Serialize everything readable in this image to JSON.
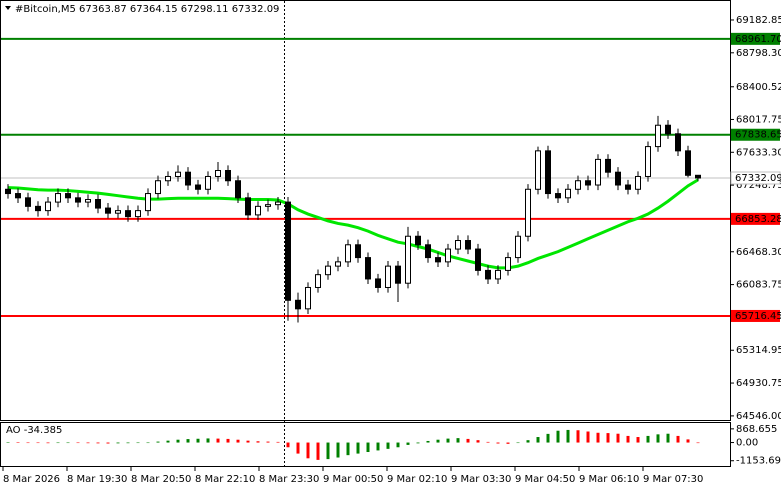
{
  "chart_data": [
    {
      "type": "candlestick",
      "title": "#Bitcoin,M5  67363.87 67364.15 67298.11 67332.09",
      "ylim": [
        64498,
        69405
      ],
      "yticks": [
        {
          "value": 69182.85,
          "label": "69182.85"
        },
        {
          "value": 68798.3,
          "label": "68798.30"
        },
        {
          "value": 68400.52,
          "label": "68400.52"
        },
        {
          "value": 68017.75,
          "label": "68017.75"
        },
        {
          "value": 67633.3,
          "label": "67633.30"
        },
        {
          "value": 67248.75,
          "label": "67248.75"
        },
        {
          "value": 66468.3,
          "label": "66468.30"
        },
        {
          "value": 66083.75,
          "label": "66083.75"
        },
        {
          "value": 65314.95,
          "label": "65314.95"
        },
        {
          "value": 64930.75,
          "label": "64930.75"
        },
        {
          "value": 64546,
          "label": "64546.00"
        }
      ],
      "levels": [
        {
          "value": 68961.7,
          "label": "68961.70",
          "color": "#008000",
          "text_color": "#ffffff"
        },
        {
          "value": 67838.65,
          "label": "67838.65",
          "color": "#008000",
          "text_color": "#ffffff"
        },
        {
          "value": 66853.28,
          "label": "66853.28",
          "color": "#ff0000",
          "text_color": "#ffffff"
        },
        {
          "value": 65716.45,
          "label": "65716.45",
          "color": "#ff0000",
          "text_color": "#ffffff"
        }
      ],
      "last_price": {
        "value": 67332.09,
        "color": "#c0c0c0",
        "text_color": "#000000"
      },
      "bull_color": "#ffffff",
      "bear_color": "#000000",
      "outline_color": "#000000",
      "candles": [
        [
          67200,
          67260,
          67090,
          67150
        ],
        [
          67150,
          67210,
          67040,
          67100
        ],
        [
          67100,
          67160,
          66940,
          67000
        ],
        [
          67000,
          67060,
          66880,
          66950
        ],
        [
          66950,
          67110,
          66890,
          67050
        ],
        [
          67050,
          67210,
          66990,
          67150
        ],
        [
          67150,
          67210,
          67040,
          67100
        ],
        [
          67100,
          67160,
          66990,
          67050
        ],
        [
          67050,
          67140,
          66990,
          67080
        ],
        [
          67080,
          67140,
          66920,
          66980
        ],
        [
          66980,
          67040,
          66860,
          66920
        ],
        [
          66920,
          67010,
          66860,
          66950
        ],
        [
          66950,
          67010,
          66820,
          66880
        ],
        [
          66880,
          67010,
          66820,
          66950
        ],
        [
          66950,
          67210,
          66890,
          67150
        ],
        [
          67150,
          67360,
          67090,
          67300
        ],
        [
          67300,
          67410,
          67240,
          67350
        ],
        [
          67350,
          67480,
          67290,
          67400
        ],
        [
          67400,
          67460,
          67190,
          67250
        ],
        [
          67250,
          67310,
          67140,
          67200
        ],
        [
          67200,
          67410,
          67140,
          67350
        ],
        [
          67350,
          67520,
          67290,
          67420
        ],
        [
          67420,
          67480,
          67240,
          67300
        ],
        [
          67300,
          67360,
          67040,
          67100
        ],
        [
          67100,
          67160,
          66840,
          66900
        ],
        [
          66900,
          67060,
          66840,
          67000
        ],
        [
          67000,
          67080,
          66940,
          67020
        ],
        [
          67020,
          67110,
          66960,
          67050
        ],
        [
          67050,
          67110,
          65660,
          65900
        ],
        [
          65900,
          65990,
          65640,
          65800
        ],
        [
          65800,
          66110,
          65740,
          66050
        ],
        [
          66050,
          66260,
          65990,
          66200
        ],
        [
          66200,
          66360,
          66140,
          66300
        ],
        [
          66300,
          66410,
          66240,
          66350
        ],
        [
          66350,
          66610,
          66290,
          66550
        ],
        [
          66550,
          66610,
          66340,
          66400
        ],
        [
          66400,
          66460,
          66090,
          66150
        ],
        [
          66150,
          66210,
          65990,
          66050
        ],
        [
          66050,
          66360,
          65990,
          66300
        ],
        [
          66300,
          66360,
          65880,
          66100
        ],
        [
          66100,
          66760,
          66040,
          66650
        ],
        [
          66650,
          66710,
          66490,
          66550
        ],
        [
          66550,
          66610,
          66340,
          66400
        ],
        [
          66400,
          66460,
          66290,
          66350
        ],
        [
          66350,
          66560,
          66290,
          66500
        ],
        [
          66500,
          66660,
          66440,
          66600
        ],
        [
          66600,
          66660,
          66440,
          66500
        ],
        [
          66500,
          66560,
          66190,
          66250
        ],
        [
          66250,
          66310,
          66090,
          66150
        ],
        [
          66150,
          66310,
          66090,
          66250
        ],
        [
          66250,
          66460,
          66190,
          66400
        ],
        [
          66400,
          66710,
          66340,
          66650
        ],
        [
          66650,
          67260,
          66590,
          67200
        ],
        [
          67200,
          67700,
          67140,
          67650
        ],
        [
          67650,
          67710,
          67090,
          67150
        ],
        [
          67150,
          67210,
          67040,
          67100
        ],
        [
          67100,
          67260,
          67040,
          67200
        ],
        [
          67200,
          67360,
          67140,
          67300
        ],
        [
          67300,
          67360,
          67190,
          67250
        ],
        [
          67250,
          67610,
          67190,
          67550
        ],
        [
          67550,
          67610,
          67340,
          67400
        ],
        [
          67400,
          67460,
          67190,
          67250
        ],
        [
          67250,
          67310,
          67140,
          67200
        ],
        [
          67200,
          67410,
          67140,
          67350
        ],
        [
          67350,
          67760,
          67290,
          67700
        ],
        [
          67700,
          68060,
          67640,
          67950
        ],
        [
          67950,
          68010,
          67790,
          67850
        ],
        [
          67850,
          67910,
          67590,
          67650
        ],
        [
          67650,
          67710,
          67340,
          67363.87
        ],
        [
          67363.87,
          67364.15,
          67298.11,
          67332.09
        ]
      ],
      "line_color": "#00e600",
      "line_values": [
        67220,
        67215,
        67205,
        67195,
        67190,
        67190,
        67185,
        67175,
        67165,
        67155,
        67140,
        67125,
        67110,
        67095,
        67085,
        67085,
        67090,
        67095,
        67095,
        67095,
        67095,
        67095,
        67090,
        67085,
        67080,
        67080,
        67080,
        67075,
        67030,
        66960,
        66910,
        66870,
        66830,
        66800,
        66780,
        66750,
        66710,
        66660,
        66620,
        66580,
        66560,
        66530,
        66500,
        66460,
        66420,
        66390,
        66360,
        66330,
        66300,
        66280,
        66280,
        66300,
        66340,
        66390,
        66430,
        66470,
        66520,
        66570,
        66620,
        66670,
        66720,
        66770,
        66820,
        66860,
        66910,
        66980,
        67060,
        67150,
        67240,
        67310
      ],
      "time_labels": [
        "8 Mar 2026",
        "8 Mar 19:30",
        "8 Mar 20:50",
        "8 Mar 22:10",
        "8 Mar 23:30",
        "9 Mar 00:50",
        "9 Mar 02:10",
        "9 Mar 03:30",
        "9 Mar 04:50",
        "9 Mar 06:10",
        "9 Mar 07:30"
      ]
    },
    {
      "type": "bar",
      "title": "AO -34.385",
      "ylim": [
        -1488,
        1240
      ],
      "yticks": [
        868.655,
        {
          "value": 0,
          "label": "0.00"
        },
        -1153.69
      ],
      "up_color": "#008000",
      "down_color": "#ff0000",
      "values": [
        20,
        10,
        -10,
        -30,
        -40,
        -30,
        -20,
        -30,
        -40,
        -50,
        -60,
        -50,
        -40,
        -30,
        0,
        60,
        120,
        180,
        220,
        240,
        260,
        250,
        230,
        180,
        120,
        80,
        60,
        40,
        -300,
        -700,
        -1000,
        -1100,
        -1050,
        -950,
        -800,
        -700,
        -600,
        -500,
        -400,
        -300,
        -150,
        -50,
        100,
        180,
        250,
        280,
        230,
        150,
        40,
        -60,
        -80,
        -20,
        150,
        350,
        550,
        750,
        800,
        780,
        700,
        620,
        600,
        560,
        420,
        350,
        420,
        520,
        560,
        420,
        200,
        -34.385
      ]
    }
  ]
}
